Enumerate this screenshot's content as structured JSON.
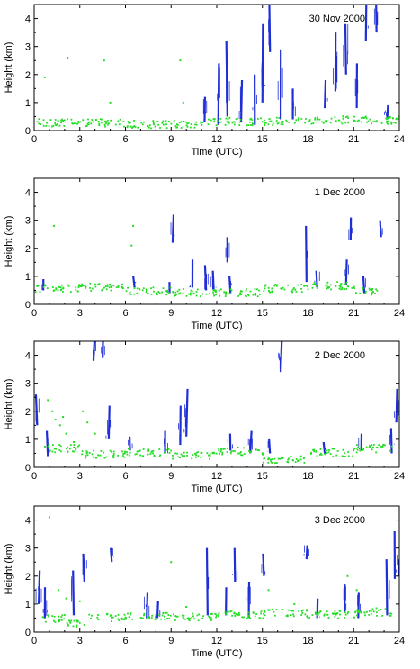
{
  "colors": {
    "lidar_cloud": "#1f2fd6",
    "ceilometer_base": "#22dd22",
    "axes": "#000000"
  },
  "chart_data": [
    {
      "type": "scatter",
      "date": "30 Nov 2000",
      "xlabel": "Time (UTC)",
      "ylabel": "Height (km)",
      "xlim": [
        0,
        24
      ],
      "ylim": [
        0,
        4.5
      ],
      "xticks": [
        0,
        3,
        6,
        9,
        12,
        15,
        18,
        21,
        24
      ],
      "yticks": [
        0,
        1,
        2,
        3,
        4
      ],
      "green_base": [
        {
          "x0": 0.0,
          "x1": 6.0,
          "y": 0.3
        },
        {
          "x0": 6.0,
          "x1": 11.0,
          "y": 0.25
        },
        {
          "x0": 11.0,
          "x1": 16.5,
          "y": 0.35
        },
        {
          "x0": 16.5,
          "x1": 24.0,
          "y": 0.4
        }
      ],
      "green_points": [
        [
          0.7,
          1.9
        ],
        [
          2.2,
          2.6
        ],
        [
          4.6,
          2.5
        ],
        [
          5.0,
          1.0
        ],
        [
          9.6,
          2.5
        ],
        [
          9.8,
          1.0
        ]
      ],
      "blue_streaks": [
        {
          "x": 11.2,
          "y0": 0.3,
          "y1": 1.2
        },
        {
          "x": 12.1,
          "y0": 0.2,
          "y1": 2.4
        },
        {
          "x": 12.7,
          "y0": 0.5,
          "y1": 3.2
        },
        {
          "x": 13.6,
          "y0": 0.3,
          "y1": 1.8
        },
        {
          "x": 14.5,
          "y0": 0.2,
          "y1": 2.0
        },
        {
          "x": 15.0,
          "y0": 1.0,
          "y1": 3.8
        },
        {
          "x": 15.5,
          "y0": 2.8,
          "y1": 4.5
        },
        {
          "x": 16.2,
          "y0": 0.4,
          "y1": 2.9
        },
        {
          "x": 17.0,
          "y0": 0.4,
          "y1": 1.5
        },
        {
          "x": 19.1,
          "y0": 0.8,
          "y1": 1.8
        },
        {
          "x": 19.8,
          "y0": 1.4,
          "y1": 3.5
        },
        {
          "x": 20.5,
          "y0": 2.0,
          "y1": 3.8
        },
        {
          "x": 21.2,
          "y0": 0.8,
          "y1": 2.4
        },
        {
          "x": 21.8,
          "y0": 3.2,
          "y1": 4.5
        },
        {
          "x": 22.5,
          "y0": 3.5,
          "y1": 4.5
        },
        {
          "x": 23.2,
          "y0": 0.4,
          "y1": 0.9
        }
      ]
    },
    {
      "type": "scatter",
      "date": "1 Dec 2000",
      "xlabel": "Time (UTC)",
      "ylabel": "Height (km)",
      "xlim": [
        0,
        24
      ],
      "ylim": [
        0,
        4.5
      ],
      "xticks": [
        0,
        3,
        6,
        9,
        12,
        15,
        18,
        21,
        24
      ],
      "yticks": [
        0,
        1,
        2,
        3,
        4
      ],
      "green_base": [
        {
          "x0": 0.0,
          "x1": 3.0,
          "y": 0.6
        },
        {
          "x0": 3.0,
          "x1": 6.0,
          "y": 0.65
        },
        {
          "x0": 6.0,
          "x1": 9.0,
          "y": 0.5
        },
        {
          "x0": 9.0,
          "x1": 12.0,
          "y": 0.45
        },
        {
          "x0": 12.0,
          "x1": 15.0,
          "y": 0.45
        },
        {
          "x0": 15.0,
          "x1": 18.0,
          "y": 0.6
        },
        {
          "x0": 18.0,
          "x1": 21.0,
          "y": 0.7
        },
        {
          "x0": 21.0,
          "x1": 22.5,
          "y": 0.5
        }
      ],
      "green_points": [
        [
          1.3,
          2.8
        ],
        [
          6.5,
          2.8
        ],
        [
          6.4,
          2.1
        ]
      ],
      "blue_streaks": [
        {
          "x": 0.6,
          "y0": 0.5,
          "y1": 0.9
        },
        {
          "x": 6.6,
          "y0": 0.6,
          "y1": 1.0
        },
        {
          "x": 8.9,
          "y0": 0.4,
          "y1": 0.8
        },
        {
          "x": 9.1,
          "y0": 2.2,
          "y1": 3.2
        },
        {
          "x": 10.4,
          "y0": 0.6,
          "y1": 1.6
        },
        {
          "x": 11.3,
          "y0": 0.5,
          "y1": 1.4
        },
        {
          "x": 11.8,
          "y0": 0.5,
          "y1": 1.2
        },
        {
          "x": 12.7,
          "y0": 1.5,
          "y1": 2.4
        },
        {
          "x": 12.9,
          "y0": 0.4,
          "y1": 1.0
        },
        {
          "x": 17.9,
          "y0": 0.8,
          "y1": 2.8
        },
        {
          "x": 18.6,
          "y0": 0.6,
          "y1": 1.2
        },
        {
          "x": 20.5,
          "y0": 0.7,
          "y1": 1.6
        },
        {
          "x": 20.8,
          "y0": 2.3,
          "y1": 3.1
        },
        {
          "x": 21.7,
          "y0": 0.4,
          "y1": 1.0
        },
        {
          "x": 22.8,
          "y0": 2.4,
          "y1": 3.0
        }
      ]
    },
    {
      "type": "scatter",
      "date": "2 Dec 2000",
      "xlabel": "Time (UTC)",
      "ylabel": "Height (km)",
      "xlim": [
        0,
        24
      ],
      "ylim": [
        0,
        4.5
      ],
      "xticks": [
        0,
        3,
        6,
        9,
        12,
        15,
        18,
        21,
        24
      ],
      "yticks": [
        0,
        1,
        2,
        3,
        4
      ],
      "green_base": [
        {
          "x0": 0.5,
          "x1": 3.0,
          "y": 0.7
        },
        {
          "x0": 3.0,
          "x1": 6.0,
          "y": 0.5
        },
        {
          "x0": 6.0,
          "x1": 9.0,
          "y": 0.55
        },
        {
          "x0": 9.0,
          "x1": 12.0,
          "y": 0.45
        },
        {
          "x0": 12.0,
          "x1": 15.0,
          "y": 0.6
        },
        {
          "x0": 15.0,
          "x1": 18.0,
          "y": 0.3
        },
        {
          "x0": 18.0,
          "x1": 21.0,
          "y": 0.55
        },
        {
          "x0": 21.0,
          "x1": 23.5,
          "y": 0.7
        }
      ],
      "green_points": [
        [
          0.9,
          2.4
        ],
        [
          1.2,
          2.0
        ],
        [
          1.4,
          1.7
        ],
        [
          1.7,
          1.5
        ],
        [
          1.9,
          1.8
        ],
        [
          2.1,
          1.2
        ],
        [
          2.6,
          0.9
        ],
        [
          3.5,
          1.6
        ],
        [
          4.0,
          1.2
        ],
        [
          3.2,
          2.0
        ]
      ],
      "blue_streaks": [
        {
          "x": 0.2,
          "y0": 1.5,
          "y1": 2.6
        },
        {
          "x": 0.9,
          "y0": 0.4,
          "y1": 1.3
        },
        {
          "x": 3.9,
          "y0": 3.8,
          "y1": 4.5
        },
        {
          "x": 4.5,
          "y0": 3.9,
          "y1": 4.5
        },
        {
          "x": 4.9,
          "y0": 1.0,
          "y1": 2.2
        },
        {
          "x": 6.3,
          "y0": 0.6,
          "y1": 1.1
        },
        {
          "x": 8.6,
          "y0": 0.5,
          "y1": 1.3
        },
        {
          "x": 9.6,
          "y0": 0.8,
          "y1": 2.2
        },
        {
          "x": 10.0,
          "y0": 1.1,
          "y1": 2.8
        },
        {
          "x": 12.9,
          "y0": 0.6,
          "y1": 1.2
        },
        {
          "x": 14.2,
          "y0": 0.5,
          "y1": 1.3
        },
        {
          "x": 15.5,
          "y0": 0.5,
          "y1": 1.0
        },
        {
          "x": 16.2,
          "y0": 3.4,
          "y1": 4.5
        },
        {
          "x": 19.1,
          "y0": 0.5,
          "y1": 0.9
        },
        {
          "x": 21.5,
          "y0": 0.6,
          "y1": 1.2
        },
        {
          "x": 23.5,
          "y0": 0.5,
          "y1": 1.4
        },
        {
          "x": 23.8,
          "y0": 1.6,
          "y1": 2.8
        }
      ]
    },
    {
      "type": "scatter",
      "date": "3 Dec 2000",
      "xlabel": "Time (UTC)",
      "ylabel": "Height (km)",
      "xlim": [
        0,
        24
      ],
      "ylim": [
        0,
        4.5
      ],
      "xticks": [
        0,
        3,
        6,
        9,
        12,
        15,
        18,
        21,
        24
      ],
      "yticks": [
        0,
        1,
        2,
        3,
        4
      ],
      "green_base": [
        {
          "x0": 0.5,
          "x1": 2.0,
          "y": 0.5
        },
        {
          "x0": 2.0,
          "x1": 3.5,
          "y": 0.3
        },
        {
          "x0": 3.5,
          "x1": 6.0,
          "y": 0.55
        },
        {
          "x0": 6.0,
          "x1": 9.0,
          "y": 0.6
        },
        {
          "x0": 9.0,
          "x1": 12.0,
          "y": 0.55
        },
        {
          "x0": 12.0,
          "x1": 15.0,
          "y": 0.65
        },
        {
          "x0": 15.0,
          "x1": 18.0,
          "y": 0.7
        },
        {
          "x0": 18.0,
          "x1": 21.0,
          "y": 0.65
        },
        {
          "x0": 21.0,
          "x1": 23.5,
          "y": 0.75
        }
      ],
      "green_points": [
        [
          1.0,
          4.1
        ],
        [
          1.6,
          1.5
        ],
        [
          2.1,
          1.2
        ],
        [
          3.0,
          1.1
        ],
        [
          9.0,
          2.5
        ],
        [
          10.0,
          0.9
        ],
        [
          15.4,
          1.5
        ],
        [
          17.1,
          1.0
        ],
        [
          20.6,
          2.0
        ],
        [
          21.2,
          1.5
        ]
      ],
      "blue_streaks": [
        {
          "x": 0.3,
          "y0": 1.0,
          "y1": 2.2
        },
        {
          "x": 0.7,
          "y0": 0.5,
          "y1": 1.6
        },
        {
          "x": 2.6,
          "y0": 0.6,
          "y1": 2.2
        },
        {
          "x": 3.3,
          "y0": 1.8,
          "y1": 2.8
        },
        {
          "x": 5.1,
          "y0": 2.5,
          "y1": 3.0
        },
        {
          "x": 7.4,
          "y0": 0.5,
          "y1": 1.4
        },
        {
          "x": 8.1,
          "y0": 0.5,
          "y1": 1.1
        },
        {
          "x": 11.4,
          "y0": 0.6,
          "y1": 3.0
        },
        {
          "x": 12.6,
          "y0": 0.6,
          "y1": 1.6
        },
        {
          "x": 13.2,
          "y0": 1.8,
          "y1": 3.0
        },
        {
          "x": 14.1,
          "y0": 0.5,
          "y1": 1.8
        },
        {
          "x": 15.1,
          "y0": 2.0,
          "y1": 2.8
        },
        {
          "x": 17.9,
          "y0": 2.6,
          "y1": 3.1
        },
        {
          "x": 18.6,
          "y0": 0.5,
          "y1": 1.2
        },
        {
          "x": 20.4,
          "y0": 0.7,
          "y1": 1.7
        },
        {
          "x": 21.3,
          "y0": 0.5,
          "y1": 1.4
        },
        {
          "x": 23.2,
          "y0": 0.6,
          "y1": 2.6
        },
        {
          "x": 23.7,
          "y0": 1.9,
          "y1": 3.6
        },
        {
          "x": 24.0,
          "y0": 2.0,
          "y1": 2.6
        }
      ]
    }
  ]
}
